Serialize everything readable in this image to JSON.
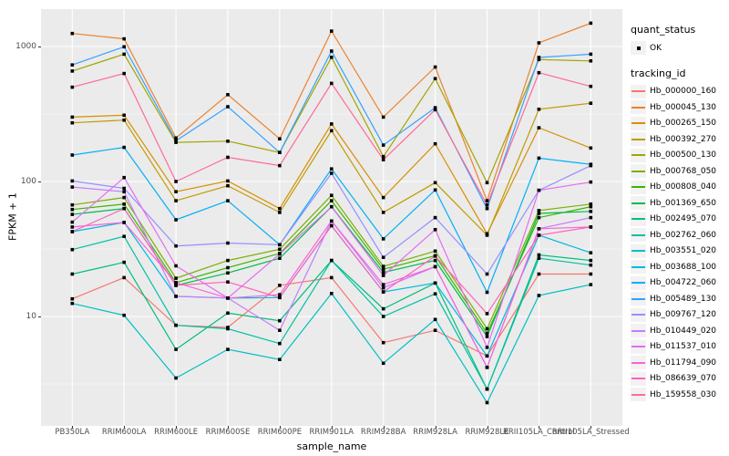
{
  "chart_data": {
    "type": "line",
    "title": "",
    "xlabel": "sample_name",
    "ylabel": "FPKM + 1",
    "y_scale": "log10",
    "y_ticks": [
      10,
      100,
      1000
    ],
    "y_minor_ticks": [
      3.162,
      31.62,
      316.2
    ],
    "ylim_log": [
      2.1,
      1600
    ],
    "grid": "major-and-minor",
    "legend_position": "right",
    "marker": {
      "shape": "small-black-square",
      "color": "#000000"
    },
    "categories": [
      "PB350LA",
      "RRIM600LA",
      "RRIM600LE",
      "RRIM600SE",
      "RRIM600PE",
      "RRIM901LA",
      "RRIM928BA",
      "RRIM928LA",
      "RRIM928LE",
      "RRII105LA_Control",
      "RRII105LA_Stressed"
    ],
    "series": [
      {
        "name": "Hb_000000_160",
        "color": "#F8766D",
        "values": [
          13.5,
          19.4,
          8.6,
          8.3,
          17,
          19.4,
          6.4,
          7.9,
          5.1,
          20.6,
          20.6
        ]
      },
      {
        "name": "Hb_000045_130",
        "color": "#EA8331",
        "values": [
          1250,
          1140,
          210,
          440,
          207,
          1300,
          300,
          705,
          72,
          1065,
          1490
        ]
      },
      {
        "name": "Hb_000265_150",
        "color": "#D89000",
        "values": [
          300,
          310,
          84,
          101,
          63,
          267,
          76,
          190,
          41,
          250,
          177
        ]
      },
      {
        "name": "Hb_000392_270",
        "color": "#C09B00",
        "values": [
          272,
          285,
          72,
          93,
          59,
          238,
          59,
          98,
          40,
          343,
          380
        ]
      },
      {
        "name": "Hb_000500_130",
        "color": "#A3A500",
        "values": [
          658,
          877,
          195,
          199,
          164,
          832,
          153,
          578,
          98,
          800,
          782
        ]
      },
      {
        "name": "Hb_000768_050",
        "color": "#7CAE00",
        "values": [
          67,
          76,
          19.2,
          26,
          31.5,
          79,
          23.5,
          30.5,
          8.1,
          61,
          68
        ]
      },
      {
        "name": "Hb_000808_040",
        "color": "#39B600",
        "values": [
          62,
          68,
          17.8,
          23,
          29.3,
          72,
          22.4,
          28.2,
          7.5,
          54,
          65
        ]
      },
      {
        "name": "Hb_001369_650",
        "color": "#00BB4E",
        "values": [
          57,
          63,
          17,
          21,
          27,
          65,
          21.2,
          26,
          7.1,
          58,
          60
        ]
      },
      {
        "name": "Hb_002495_070",
        "color": "#00BF7D",
        "values": [
          20.6,
          25.2,
          5.7,
          10.6,
          9.3,
          26,
          11.4,
          17.7,
          2.9,
          28.6,
          26
        ]
      },
      {
        "name": "Hb_002762_060",
        "color": "#00C1A3",
        "values": [
          31.3,
          39.2,
          8.6,
          8.1,
          6.3,
          26,
          10,
          14.7,
          2.9,
          27,
          24
        ]
      },
      {
        "name": "Hb_003551_020",
        "color": "#00BFC4",
        "values": [
          12.5,
          10.2,
          3.5,
          5.7,
          4.8,
          14.8,
          4.5,
          9.5,
          2.3,
          14.3,
          17.2
        ]
      },
      {
        "name": "Hb_003688_100",
        "color": "#00BAE0",
        "values": [
          42.5,
          49.7,
          14.1,
          13.7,
          13.8,
          47,
          15.2,
          17.7,
          5.1,
          40,
          29.6
        ]
      },
      {
        "name": "Hb_004722_060",
        "color": "#00B0F6",
        "values": [
          157,
          179,
          52,
          72,
          34,
          124,
          37.6,
          86.5,
          15.1,
          149,
          134
        ]
      },
      {
        "name": "Hb_005489_130",
        "color": "#35A2FF",
        "values": [
          730,
          995,
          200,
          358,
          164,
          925,
          186,
          352,
          63,
          830,
          877
        ]
      },
      {
        "name": "Hb_009767_120",
        "color": "#9590FF",
        "values": [
          101,
          89,
          33.3,
          35,
          34,
          115,
          27.4,
          54,
          20.6,
          86,
          131
        ]
      },
      {
        "name": "Hb_010449_020",
        "color": "#C77CFF",
        "values": [
          91,
          84,
          14.1,
          13.7,
          7.9,
          51,
          16.3,
          23.4,
          4.2,
          44.7,
          54
        ]
      },
      {
        "name": "Hb_011537_010",
        "color": "#E76BF3",
        "values": [
          50,
          107,
          23.7,
          13.7,
          29,
          65,
          20.1,
          44,
          5.9,
          86,
          99
        ]
      },
      {
        "name": "Hb_011794_090",
        "color": "#FA62DB",
        "values": [
          46,
          49.7,
          17.8,
          13.7,
          14.5,
          51,
          17.2,
          23.4,
          4.2,
          44.7,
          46
        ]
      },
      {
        "name": "Hb_086639_070",
        "color": "#FF62BC",
        "values": [
          42.5,
          63,
          17,
          18,
          13.8,
          47,
          15.2,
          28,
          10.5,
          40,
          46
        ]
      },
      {
        "name": "Hb_159558_030",
        "color": "#FF6A98",
        "values": [
          500,
          631,
          100,
          151,
          131,
          533,
          145,
          340,
          67,
          640,
          507
        ]
      }
    ]
  },
  "legend": {
    "quant_status": {
      "title": "quant_status",
      "items": [
        {
          "label": "OK",
          "marker": "black-point"
        }
      ]
    },
    "tracking_id": {
      "title": "tracking_id"
    }
  },
  "colors": {
    "panel_bg": "#EBEBEB",
    "grid_major": "#FFFFFF",
    "grid_minor": "#FFFFFF",
    "axis_text": "#4D4D4D",
    "marker": "#000000",
    "legend_key_bg": "#F2F2F2"
  }
}
